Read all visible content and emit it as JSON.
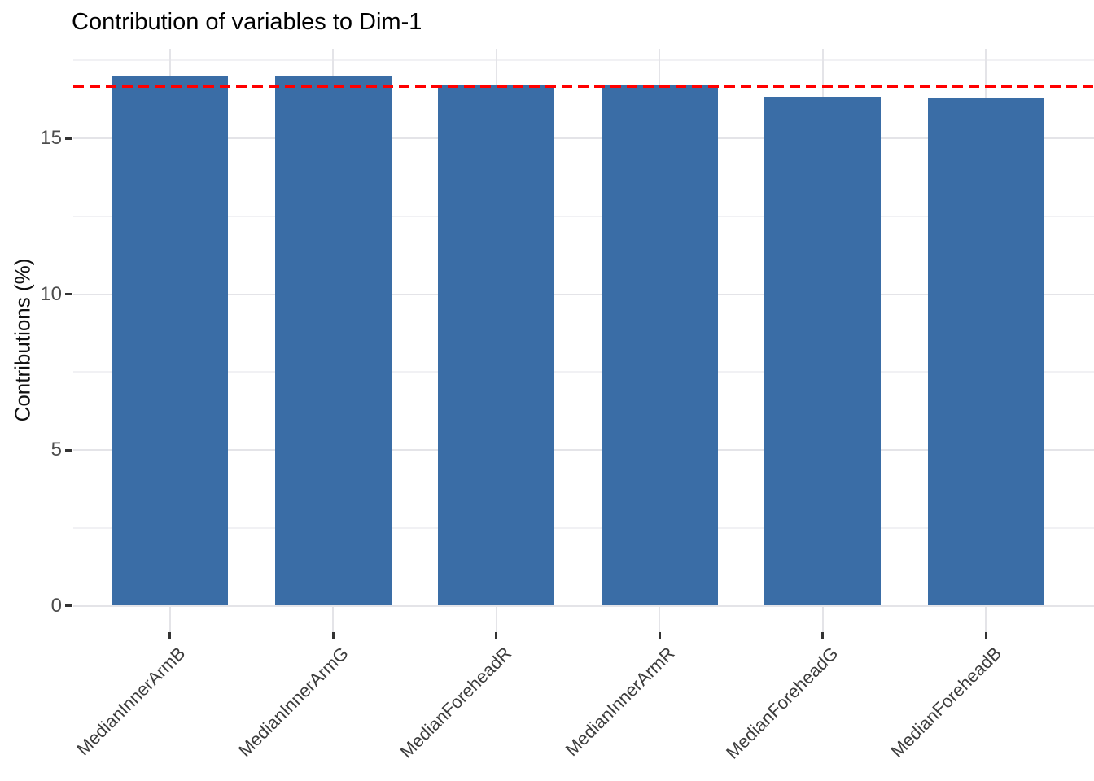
{
  "chart_data": {
    "type": "bar",
    "title": "Contribution of variables to Dim-1",
    "ylabel": "Contributions (%)",
    "xlabel": "",
    "categories": [
      "MedianInnerArmB",
      "MedianInnerArmG",
      "MedianForeheadR",
      "MedianInnerArmR",
      "MedianForeheadG",
      "MedianForeheadB"
    ],
    "values": [
      17.02,
      17.01,
      16.72,
      16.7,
      16.34,
      16.31
    ],
    "ylim": [
      0,
      17.9
    ],
    "yticks_major": [
      0,
      5,
      10,
      15
    ],
    "yticks_minor": [
      2.5,
      7.5,
      12.5,
      17.5
    ],
    "ytick_labels": [
      "0",
      "5",
      "10",
      "15"
    ],
    "reference_line": {
      "value": 16.67,
      "color": "#FF0000",
      "style": "dashed"
    },
    "bar_color": "#3A6DA6",
    "grid": "horizontal major+minor, vertical major at bar centers",
    "legend": "none"
  },
  "colors": {
    "background": "#FFFFFF",
    "bar_fill": "#3A6DA6",
    "grid_major": "#E4E4E8",
    "grid_minor": "#F1F1F4",
    "axis_text": "#4D4D4D",
    "x_label_text": "#3D3D3D",
    "tick_mark": "#333333",
    "title_text": "#000000",
    "reference_line": "#FF0000"
  }
}
